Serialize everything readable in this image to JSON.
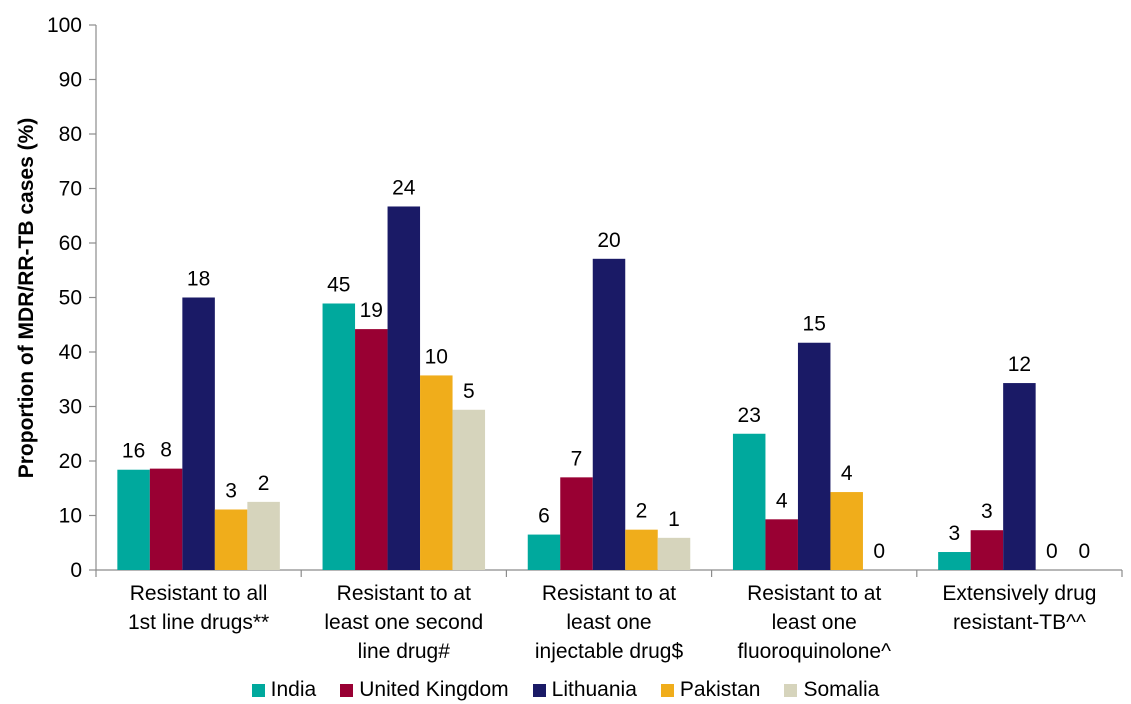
{
  "chart_data": {
    "type": "bar",
    "title": "",
    "xlabel": "",
    "ylabel": "Proportion of MDR/RR-TB cases (%)",
    "ylim": [
      0,
      100
    ],
    "yticks": [
      0,
      10,
      20,
      30,
      40,
      50,
      60,
      70,
      80,
      90,
      100
    ],
    "grid": false,
    "legend_position": "bottom",
    "categories": [
      [
        "Resistant to all",
        "1st line drugs**"
      ],
      [
        "Resistant to at",
        "least one second",
        "line drug#"
      ],
      [
        "Resistant to at",
        "least one",
        "injectable drug$"
      ],
      [
        "Resistant to at",
        "least one",
        "fluoroquinolone^"
      ],
      [
        "Extensively drug",
        "resistant-TB^^"
      ]
    ],
    "series": [
      {
        "name": "India",
        "color": "#00a99d",
        "values": [
          18.4,
          48.9,
          6.5,
          25.0,
          3.3
        ],
        "labels": [
          "16",
          "45",
          "6",
          "23",
          "3"
        ]
      },
      {
        "name": "United Kingdom",
        "color": "#990033",
        "values": [
          18.6,
          44.2,
          17.0,
          9.3,
          7.3
        ],
        "labels": [
          "8",
          "19",
          "7",
          "4",
          "3"
        ]
      },
      {
        "name": "Lithuania",
        "color": "#1a1a66",
        "values": [
          50.0,
          66.7,
          57.1,
          41.7,
          34.3
        ],
        "labels": [
          "18",
          "24",
          "20",
          "15",
          "12"
        ]
      },
      {
        "name": "Pakistan",
        "color": "#f0ad1b",
        "values": [
          11.1,
          35.7,
          7.4,
          14.3,
          0
        ],
        "labels": [
          "3",
          "10",
          "2",
          "4",
          "0"
        ]
      },
      {
        "name": "Somalia",
        "color": "#d6d4bc",
        "values": [
          12.5,
          29.4,
          5.9,
          0,
          0
        ],
        "labels": [
          "2",
          "5",
          "1",
          "0",
          "0"
        ]
      }
    ]
  }
}
